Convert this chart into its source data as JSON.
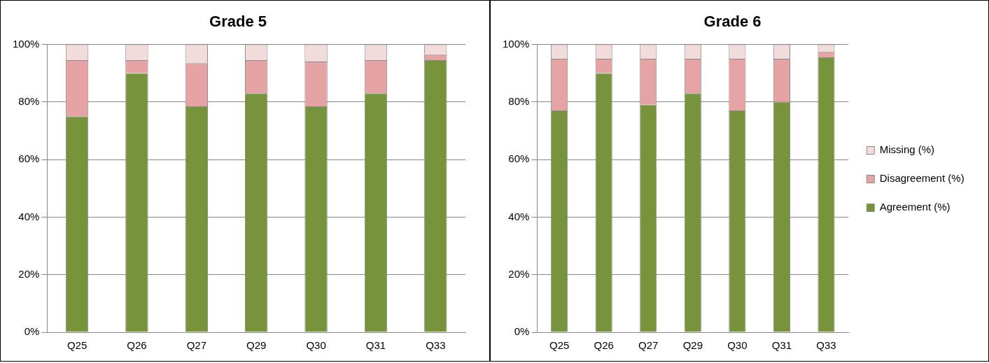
{
  "chart_data": [
    {
      "type": "bar",
      "title": "Grade 5",
      "stacked": true,
      "categories": [
        "Q25",
        "Q26",
        "Q27",
        "Q29",
        "Q30",
        "Q31",
        "Q33"
      ],
      "ylim": [
        0,
        100
      ],
      "yticks": [
        {
          "value": 0,
          "label": "0%"
        },
        {
          "value": 20,
          "label": "20%"
        },
        {
          "value": 40,
          "label": "40%"
        },
        {
          "value": 60,
          "label": "60%"
        },
        {
          "value": 80,
          "label": "80%"
        },
        {
          "value": 100,
          "label": "100%"
        }
      ],
      "grid": "y",
      "legend": false,
      "series": [
        {
          "color": "#77933c",
          "values": [
            75,
            90,
            78.5,
            83,
            78.5,
            83,
            94.5
          ]
        },
        {
          "color": "#e6a3a3",
          "values": [
            19.5,
            4.5,
            15,
            11.5,
            15.5,
            11.5,
            2
          ]
        },
        {
          "color": "#f2dcdb",
          "values": [
            5.5,
            5.5,
            6.5,
            5.5,
            6,
            5.5,
            3.5
          ]
        }
      ]
    },
    {
      "type": "bar",
      "title": "Grade 6",
      "stacked": true,
      "categories": [
        "Q25",
        "Q26",
        "Q27",
        "Q29",
        "Q30",
        "Q31",
        "Q33"
      ],
      "ylim": [
        0,
        100
      ],
      "yticks": [
        {
          "value": 0,
          "label": "0%"
        },
        {
          "value": 20,
          "label": "20%"
        },
        {
          "value": 40,
          "label": "40%"
        },
        {
          "value": 60,
          "label": "60%"
        },
        {
          "value": 80,
          "label": "80%"
        },
        {
          "value": 100,
          "label": "100%"
        }
      ],
      "grid": "y",
      "legend": "right",
      "series": [
        {
          "name": "Agreement (%)",
          "color": "#77933c",
          "values": [
            77,
            90,
            79,
            83,
            77,
            80,
            95.5
          ]
        },
        {
          "name": "Disagreement (%)",
          "color": "#e6a3a3",
          "values": [
            18,
            5,
            16,
            12,
            18,
            15,
            2
          ]
        },
        {
          "name": "Missing (%)",
          "color": "#f2dcdb",
          "values": [
            5,
            5,
            5,
            5,
            5,
            5,
            2.5
          ]
        }
      ]
    }
  ]
}
